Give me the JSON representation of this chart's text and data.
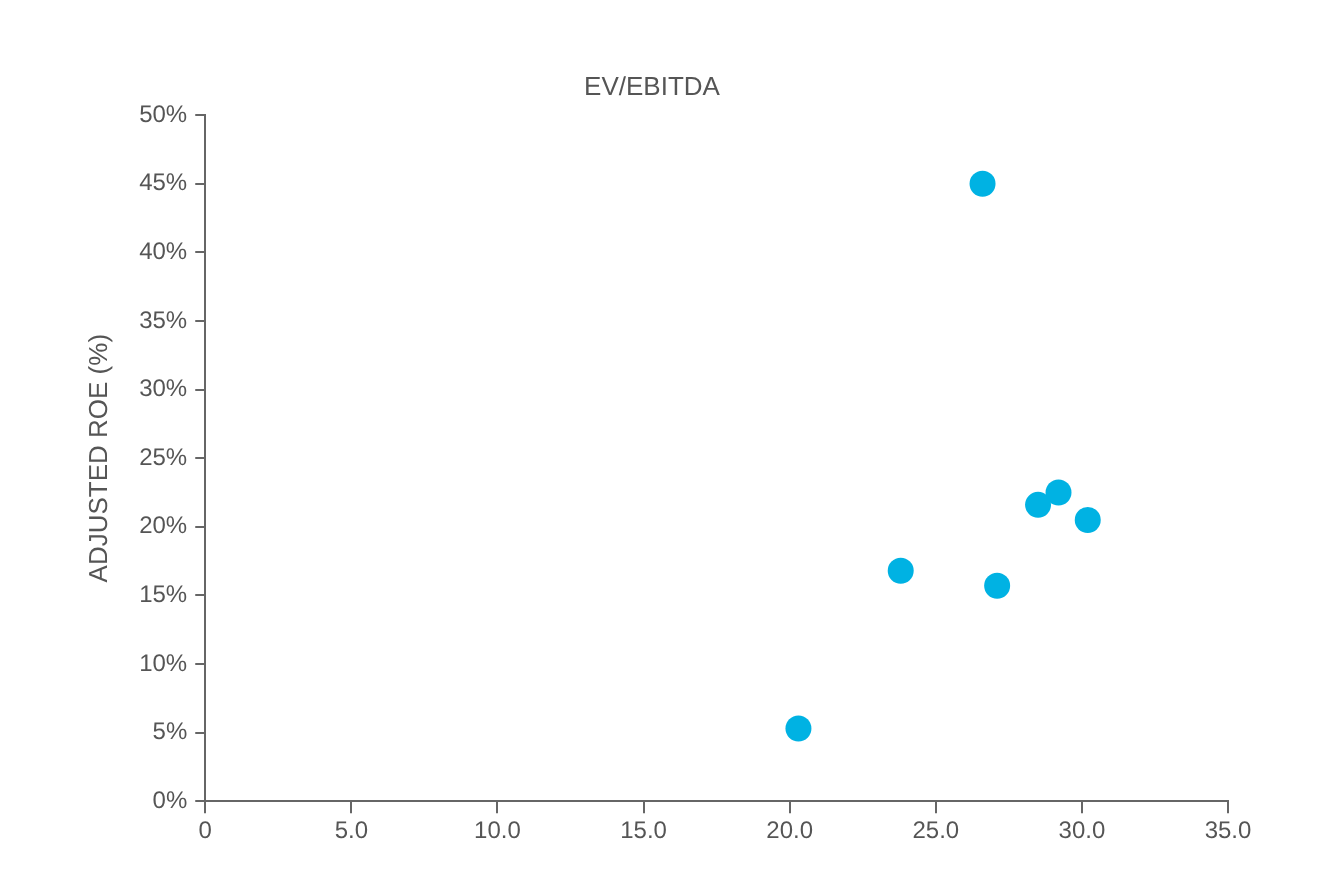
{
  "chart_data": {
    "type": "scatter",
    "title": "EV/EBITDA",
    "ylabel": "ADJUSTED ROE (%)",
    "x": [
      26.6,
      20.3,
      23.8,
      27.1,
      28.5,
      29.2,
      30.2
    ],
    "series": [
      {
        "color": "#00b2e3",
        "values": [
          45.0,
          5.3,
          16.8,
          15.7,
          21.6,
          22.5,
          20.5
        ]
      }
    ],
    "xlim": [
      0,
      35
    ],
    "xticks": [
      {
        "value": 0,
        "label": "0"
      },
      {
        "value": 5,
        "label": "5.0"
      },
      {
        "value": 10,
        "label": "10.0"
      },
      {
        "value": 15,
        "label": "15.0"
      },
      {
        "value": 20,
        "label": "20.0"
      },
      {
        "value": 25,
        "label": "25.0"
      },
      {
        "value": 30,
        "label": "30.0"
      },
      {
        "value": 35,
        "label": "35.0"
      }
    ],
    "ylim": [
      0,
      50
    ],
    "yticks": [
      {
        "value": 0,
        "label": "0%"
      },
      {
        "value": 5,
        "label": "5%"
      },
      {
        "value": 10,
        "label": "10%"
      },
      {
        "value": 15,
        "label": "15%"
      },
      {
        "value": 20,
        "label": "20%"
      },
      {
        "value": 25,
        "label": "25%"
      },
      {
        "value": 30,
        "label": "30%"
      },
      {
        "value": 35,
        "label": "35%"
      },
      {
        "value": 40,
        "label": "40%"
      },
      {
        "value": 45,
        "label": "45%"
      },
      {
        "value": 50,
        "label": "50%"
      }
    ],
    "grid": false,
    "legend": false,
    "marker": "circle"
  }
}
